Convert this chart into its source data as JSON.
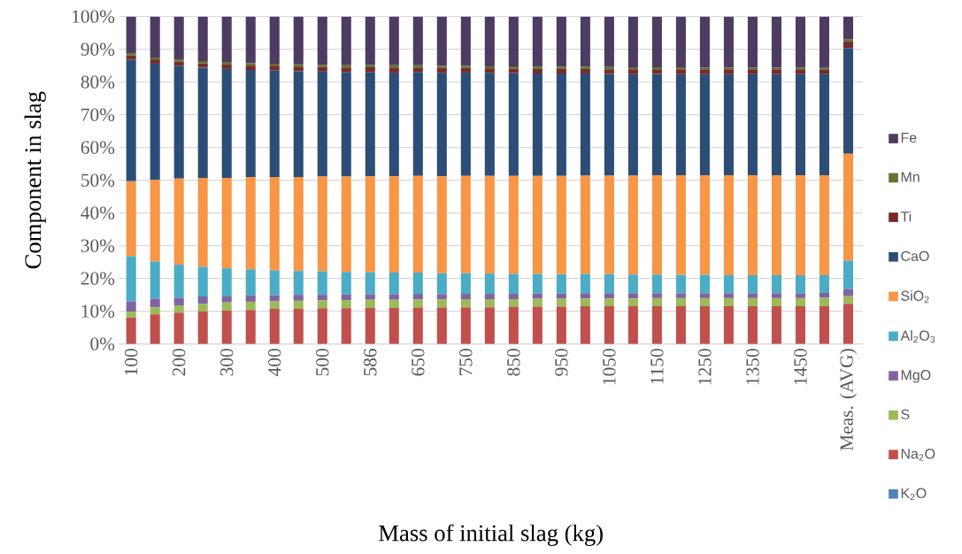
{
  "chart_data": {
    "type": "bar",
    "stacked": true,
    "xlabel": "Mass of initial slag (kg)",
    "ylabel": "Component in slag",
    "categories": [
      "100",
      null,
      "200",
      null,
      "300",
      null,
      "400",
      null,
      "500",
      null,
      "586",
      null,
      "650",
      null,
      "750",
      null,
      "850",
      null,
      "950",
      null,
      "1050",
      null,
      "1150",
      null,
      "1250",
      null,
      "1350",
      null,
      "1450",
      null,
      "Meas. (AVG)"
    ],
    "ylim": [
      0,
      100
    ],
    "yticks": [
      {
        "value": 0,
        "label": "0%"
      },
      {
        "value": 10,
        "label": "10%"
      },
      {
        "value": 20,
        "label": "20%"
      },
      {
        "value": 30,
        "label": "30%"
      },
      {
        "value": 40,
        "label": "40%"
      },
      {
        "value": 50,
        "label": "50%"
      },
      {
        "value": 60,
        "label": "60%"
      },
      {
        "value": 70,
        "label": "70%"
      },
      {
        "value": 80,
        "label": "80%"
      },
      {
        "value": 90,
        "label": "90%"
      },
      {
        "value": 100,
        "label": "100%"
      }
    ],
    "grid": "y",
    "legend": "right",
    "series": [
      {
        "name": "K$_{2}$O",
        "color": "#4f81bd",
        "values": [
          0,
          0,
          0,
          0,
          0,
          0,
          0,
          0,
          0,
          0,
          0,
          0,
          0,
          0,
          0,
          0,
          0,
          0,
          0,
          0,
          0,
          0,
          0,
          0,
          0,
          0,
          0,
          0,
          0,
          0,
          0
        ]
      },
      {
        "name": "Na$_{2}$O",
        "color": "#c0504d",
        "values": [
          8.1,
          9.0,
          9.6,
          10.0,
          10.2,
          10.4,
          10.7,
          10.7,
          10.9,
          10.9,
          11.0,
          11.0,
          11.1,
          11.1,
          11.2,
          11.2,
          11.3,
          11.4,
          11.4,
          11.5,
          11.5,
          11.5,
          11.5,
          11.5,
          11.5,
          11.5,
          11.5,
          11.5,
          11.5,
          11.5,
          12.3
        ]
      },
      {
        "name": "S",
        "color": "#9bbb59",
        "values": [
          1.8,
          2.2,
          2.2,
          2.3,
          2.5,
          2.5,
          2.3,
          2.5,
          2.4,
          2.5,
          2.5,
          2.5,
          2.5,
          2.5,
          2.5,
          2.5,
          2.4,
          2.4,
          2.4,
          2.4,
          2.4,
          2.4,
          2.5,
          2.5,
          2.5,
          2.5,
          2.5,
          2.5,
          2.5,
          2.6,
          2.3
        ]
      },
      {
        "name": "MgO",
        "color": "#8064a2",
        "values": [
          3.1,
          2.6,
          2.3,
          2.2,
          1.8,
          1.9,
          1.9,
          1.8,
          1.7,
          1.7,
          1.7,
          1.7,
          1.7,
          1.6,
          1.6,
          1.6,
          1.6,
          1.6,
          1.6,
          1.6,
          1.6,
          1.6,
          1.5,
          1.5,
          1.5,
          1.5,
          1.5,
          1.5,
          1.5,
          1.5,
          2.2
        ]
      },
      {
        "name": "Al$_{2}$O$_{3}$",
        "color": "#4bacc6",
        "values": [
          13.8,
          11.4,
          10.1,
          9.1,
          8.6,
          8.0,
          7.6,
          7.3,
          7.2,
          6.9,
          6.7,
          6.6,
          6.5,
          6.4,
          6.3,
          6.2,
          6.1,
          6.0,
          5.9,
          5.9,
          5.8,
          5.7,
          5.7,
          5.6,
          5.6,
          5.5,
          5.5,
          5.5,
          5.5,
          5.4,
          8.6
        ]
      },
      {
        "name": "SiO$_{2}$",
        "color": "#f79646",
        "values": [
          22.9,
          25.0,
          26.3,
          27.1,
          27.6,
          28.2,
          28.5,
          28.7,
          28.9,
          29.1,
          29.3,
          29.4,
          29.5,
          29.6,
          29.7,
          29.8,
          29.9,
          29.9,
          30.0,
          30.0,
          30.1,
          30.2,
          30.3,
          30.4,
          30.4,
          30.5,
          30.5,
          30.5,
          30.5,
          30.5,
          32.7
        ]
      },
      {
        "name": "CaO",
        "color": "#2c4d75",
        "values": [
          37.2,
          35.4,
          34.4,
          33.7,
          33.3,
          32.7,
          32.5,
          32.3,
          32.1,
          31.9,
          31.8,
          31.7,
          31.7,
          31.6,
          31.6,
          31.5,
          31.4,
          31.3,
          31.3,
          31.2,
          31.1,
          31.0,
          31.0,
          30.9,
          30.9,
          30.9,
          30.9,
          30.9,
          30.9,
          30.9,
          32.3
        ]
      },
      {
        "name": "Ti",
        "color": "#772c2a",
        "values": [
          1.2,
          1.3,
          1.3,
          1.3,
          1.3,
          1.3,
          1.5,
          1.4,
          1.4,
          1.4,
          1.5,
          1.5,
          1.4,
          1.5,
          1.4,
          1.4,
          1.4,
          1.4,
          1.4,
          1.4,
          1.4,
          1.5,
          1.4,
          1.5,
          1.5,
          1.5,
          1.5,
          1.5,
          1.5,
          1.4,
          2.0
        ]
      },
      {
        "name": "Mn",
        "color": "#5f7530",
        "values": [
          0.7,
          0.6,
          0.7,
          0.7,
          0.6,
          0.7,
          0.6,
          0.7,
          0.6,
          0.7,
          0.7,
          0.7,
          0.7,
          0.6,
          0.6,
          0.6,
          0.7,
          0.7,
          0.7,
          0.7,
          0.7,
          0.6,
          0.6,
          0.6,
          0.5,
          0.5,
          0.5,
          0.5,
          0.5,
          0.5,
          0.7
        ]
      },
      {
        "name": "Fe",
        "color": "#4d3b62",
        "values": [
          11.2,
          12.5,
          13.1,
          13.6,
          14.1,
          14.3,
          14.4,
          14.6,
          14.8,
          14.9,
          14.8,
          14.9,
          14.9,
          15.1,
          15.1,
          15.2,
          15.2,
          15.3,
          15.3,
          15.3,
          15.4,
          15.5,
          15.5,
          15.5,
          15.6,
          15.6,
          15.6,
          15.6,
          15.6,
          15.7,
          6.9
        ]
      }
    ]
  }
}
